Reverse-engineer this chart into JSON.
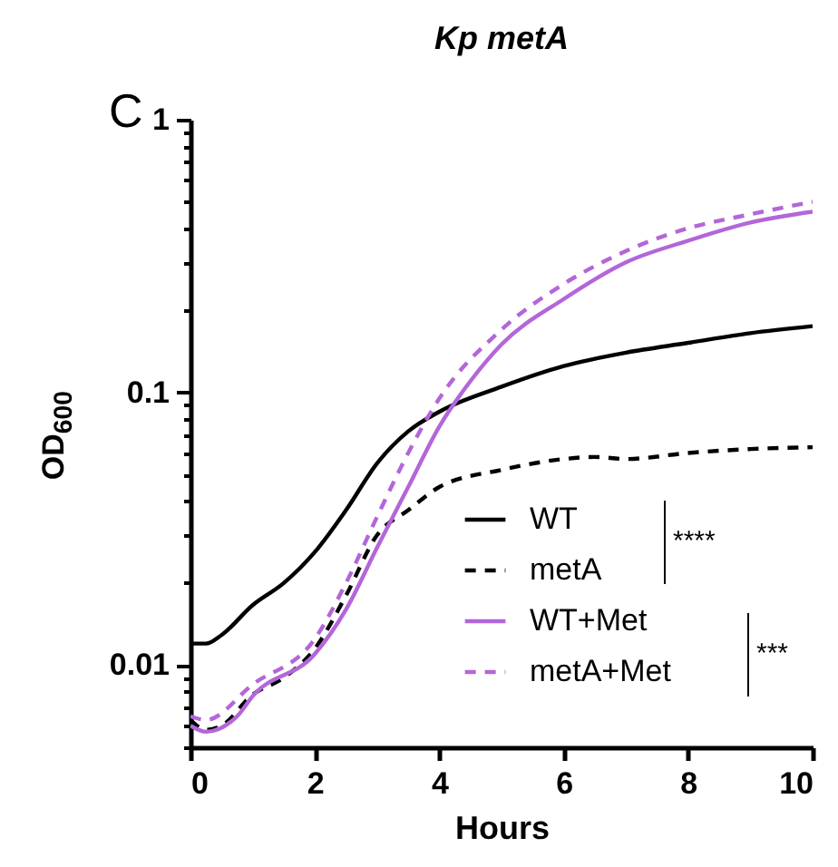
{
  "chart_data": {
    "type": "line",
    "title": "Kp metA",
    "xlabel": "Hours",
    "ylabel": "OD$_{600}$",
    "log": "y",
    "xlim": [
      0,
      10
    ],
    "xticks": [
      0,
      2,
      4,
      6,
      8,
      10
    ],
    "ylim": [
      0.005,
      1
    ],
    "yticks": [
      {
        "value": 0.005,
        "label": null
      },
      {
        "value": 0.006,
        "label": null
      },
      {
        "value": 0.007,
        "label": null
      },
      {
        "value": 0.008,
        "label": null
      },
      {
        "value": 0.009,
        "label": null
      },
      0.01,
      {
        "value": 0.02,
        "label": null
      },
      {
        "value": 0.03,
        "label": null
      },
      {
        "value": 0.04,
        "label": null
      },
      {
        "value": 0.05,
        "label": null
      },
      {
        "value": 0.06,
        "label": null
      },
      {
        "value": 0.07,
        "label": null
      },
      {
        "value": 0.08,
        "label": null
      },
      {
        "value": 0.09,
        "label": null
      },
      0.1,
      {
        "value": 0.2,
        "label": null
      },
      {
        "value": 0.3,
        "label": null
      },
      {
        "value": 0.4,
        "label": null
      },
      {
        "value": 0.5,
        "label": null
      },
      {
        "value": 0.6,
        "label": null
      },
      {
        "value": 0.7,
        "label": null
      },
      {
        "value": 0.8,
        "label": null
      },
      {
        "value": 0.9,
        "label": null
      },
      1
    ],
    "grid": false,
    "legend": "bottom right",
    "marker": "none",
    "annotations": [
      "C",
      "****",
      "***"
    ],
    "series": [
      {
        "name": "WT",
        "color": "#000000",
        "line_style": "solid",
        "x": [
          0,
          0.25,
          0.5,
          1,
          1.5,
          2,
          2.5,
          3,
          3.5,
          4,
          5,
          6,
          7,
          8,
          9,
          10
        ],
        "values": [
          0.012,
          0.012,
          0.0129,
          0.0166,
          0.02,
          0.026,
          0.037,
          0.055,
          0.072,
          0.085,
          0.105,
          0.125,
          0.14,
          0.152,
          0.165,
          0.175
        ]
      },
      {
        "name": "metA",
        "color": "#000000",
        "line_style": "dashed",
        "x": [
          0,
          0.25,
          0.5,
          1,
          1.5,
          2,
          2.5,
          3,
          3.5,
          4,
          5,
          6,
          6.5,
          7,
          8,
          9,
          10
        ],
        "values": [
          0.0063,
          0.0058,
          0.006,
          0.0078,
          0.009,
          0.0115,
          0.018,
          0.03,
          0.037,
          0.045,
          0.052,
          0.057,
          0.058,
          0.057,
          0.06,
          0.062,
          0.063
        ]
      },
      {
        "name": "WT+Met",
        "color": "#b366d9",
        "line_style": "solid",
        "x": [
          0,
          0.25,
          0.75,
          1,
          2,
          2.5,
          3,
          3.5,
          4,
          4.5,
          5,
          6,
          7,
          8,
          9,
          10
        ],
        "values": [
          0.006,
          0.0057,
          0.0065,
          0.0077,
          0.011,
          0.016,
          0.027,
          0.045,
          0.075,
          0.11,
          0.15,
          0.22,
          0.3,
          0.36,
          0.42,
          0.46
        ]
      },
      {
        "name": "metA+Met",
        "color": "#b366d9",
        "line_style": "dashed",
        "x": [
          0,
          0.25,
          1,
          2,
          2.5,
          3,
          3.5,
          4,
          5,
          6,
          7,
          8,
          9,
          10
        ],
        "values": [
          0.0065,
          0.0063,
          0.0085,
          0.0125,
          0.02,
          0.035,
          0.06,
          0.095,
          0.17,
          0.25,
          0.33,
          0.4,
          0.45,
          0.5
        ]
      }
    ]
  }
}
